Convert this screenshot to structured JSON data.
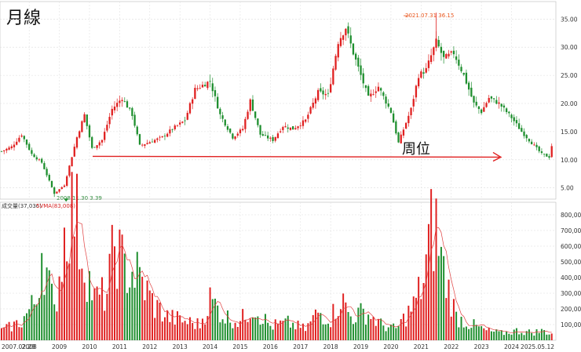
{
  "chart_data": [
    {
      "type": "candlestick",
      "title": "月線",
      "ylim": [
        3,
        37
      ],
      "yticks": [
        "35.00",
        "30.00",
        "25.00",
        "20.00",
        "15.00",
        "10.00",
        "5.00"
      ],
      "ytick_values": [
        35,
        30,
        25,
        20,
        15,
        10,
        5
      ],
      "annotations": {
        "high": {
          "date": "2021.07.31",
          "value": 36.15,
          "label": "2021.07.31  36.15"
        },
        "low": {
          "date": "2008.11.30",
          "value": 3.39,
          "label": "2008.11.30  3.39"
        },
        "arrow_label": "周位",
        "arrow_level": 10.6
      },
      "monthly_close_keypoints": [
        [
          "2007-02",
          11.5
        ],
        [
          "2007-06",
          12.3
        ],
        [
          "2007-10",
          14.5
        ],
        [
          "2008-02",
          11.0
        ],
        [
          "2008-06",
          9.5
        ],
        [
          "2008-11",
          4.0
        ],
        [
          "2009-03",
          5.5
        ],
        [
          "2009-08",
          14.0
        ],
        [
          "2009-11",
          18.0
        ],
        [
          "2010-02",
          12.0
        ],
        [
          "2010-06",
          13.5
        ],
        [
          "2010-10",
          19.0
        ],
        [
          "2011-02",
          21.0
        ],
        [
          "2011-06",
          18.0
        ],
        [
          "2011-09",
          12.5
        ],
        [
          "2012-03",
          13.5
        ],
        [
          "2012-06",
          14.0
        ],
        [
          "2012-10",
          15.5
        ],
        [
          "2013-03",
          17.0
        ],
        [
          "2013-07",
          22.5
        ],
        [
          "2014-01",
          24.0
        ],
        [
          "2014-05",
          18.0
        ],
        [
          "2014-10",
          14.0
        ],
        [
          "2015-02",
          15.5
        ],
        [
          "2015-05",
          20.5
        ],
        [
          "2015-09",
          14.5
        ],
        [
          "2016-02",
          13.5
        ],
        [
          "2016-06",
          16.0
        ],
        [
          "2016-10",
          15.5
        ],
        [
          "2017-03",
          17.0
        ],
        [
          "2017-08",
          22.0
        ],
        [
          "2017-12",
          21.5
        ],
        [
          "2018-04",
          31.0
        ],
        [
          "2018-07",
          33.5
        ],
        [
          "2018-10",
          29.0
        ],
        [
          "2019-01",
          25.0
        ],
        [
          "2019-04",
          21.0
        ],
        [
          "2019-08",
          23.0
        ],
        [
          "2020-01",
          18.5
        ],
        [
          "2020-04",
          13.0
        ],
        [
          "2020-09",
          19.0
        ],
        [
          "2020-12",
          25.0
        ],
        [
          "2021-03",
          26.0
        ],
        [
          "2021-07",
          31.0
        ],
        [
          "2021-10",
          28.0
        ],
        [
          "2022-02",
          29.0
        ],
        [
          "2022-06",
          25.0
        ],
        [
          "2022-10",
          20.0
        ],
        [
          "2023-01",
          18.5
        ],
        [
          "2023-04",
          21.0
        ],
        [
          "2023-08",
          20.0
        ],
        [
          "2024-01",
          17.5
        ],
        [
          "2024-05",
          15.0
        ],
        [
          "2024-09",
          13.0
        ],
        [
          "2025-01",
          11.0
        ],
        [
          "2025-04",
          10.5
        ],
        [
          "2025-05",
          12.5
        ]
      ]
    },
    {
      "type": "bar",
      "title": "",
      "legend": [
        "成交量(37,036)",
        "5VMA(83,008)"
      ],
      "ylim": [
        0,
        880000
      ],
      "yticks": [
        "800,000",
        "700,000",
        "600,000",
        "500,000",
        "400,000",
        "300,000",
        "200,000",
        "100,000"
      ],
      "ytick_values": [
        800000,
        700000,
        600000,
        500000,
        400000,
        300000,
        200000,
        100000
      ],
      "x_tick_labels": [
        "2007.02.28",
        "2008",
        "2009",
        "2010",
        "2011",
        "2012",
        "2013",
        "2014",
        "2015",
        "2016",
        "2017",
        "2018",
        "2019",
        "2020",
        "2021",
        "2022",
        "2023",
        "2024",
        "2025.05.12"
      ],
      "volume_keypoints": [
        [
          "2007-02",
          60000
        ],
        [
          "2007-10",
          120000
        ],
        [
          "2008-04",
          260000
        ],
        [
          "2008-06",
          600000
        ],
        [
          "2008-11",
          180000
        ],
        [
          "2009-04",
          780000
        ],
        [
          "2009-07",
          860000
        ],
        [
          "2009-10",
          560000
        ],
        [
          "2010-03",
          260000
        ],
        [
          "2010-08",
          300000
        ],
        [
          "2010-11",
          620000
        ],
        [
          "2011-03",
          450000
        ],
        [
          "2011-08",
          420000
        ],
        [
          "2012-03",
          220000
        ],
        [
          "2012-08",
          150000
        ],
        [
          "2013-03",
          120000
        ],
        [
          "2013-09",
          100000
        ],
        [
          "2014-01",
          260000
        ],
        [
          "2014-07",
          150000
        ],
        [
          "2015-01",
          120000
        ],
        [
          "2015-06",
          220000
        ],
        [
          "2016-01",
          90000
        ],
        [
          "2016-08",
          110000
        ],
        [
          "2017-03",
          70000
        ],
        [
          "2017-08",
          180000
        ],
        [
          "2018-01",
          140000
        ],
        [
          "2018-05",
          270000
        ],
        [
          "2018-09",
          150000
        ],
        [
          "2019-03",
          180000
        ],
        [
          "2019-09",
          100000
        ],
        [
          "2020-03",
          70000
        ],
        [
          "2020-10",
          220000
        ],
        [
          "2021-02",
          380000
        ],
        [
          "2021-05",
          700000
        ],
        [
          "2021-07",
          710000
        ],
        [
          "2021-10",
          440000
        ],
        [
          "2022-03",
          150000
        ],
        [
          "2022-09",
          100000
        ],
        [
          "2023-03",
          60000
        ],
        [
          "2023-09",
          45000
        ],
        [
          "2024-03",
          60000
        ],
        [
          "2024-09",
          50000
        ],
        [
          "2025-02",
          60000
        ],
        [
          "2025-05",
          40000
        ]
      ]
    }
  ]
}
